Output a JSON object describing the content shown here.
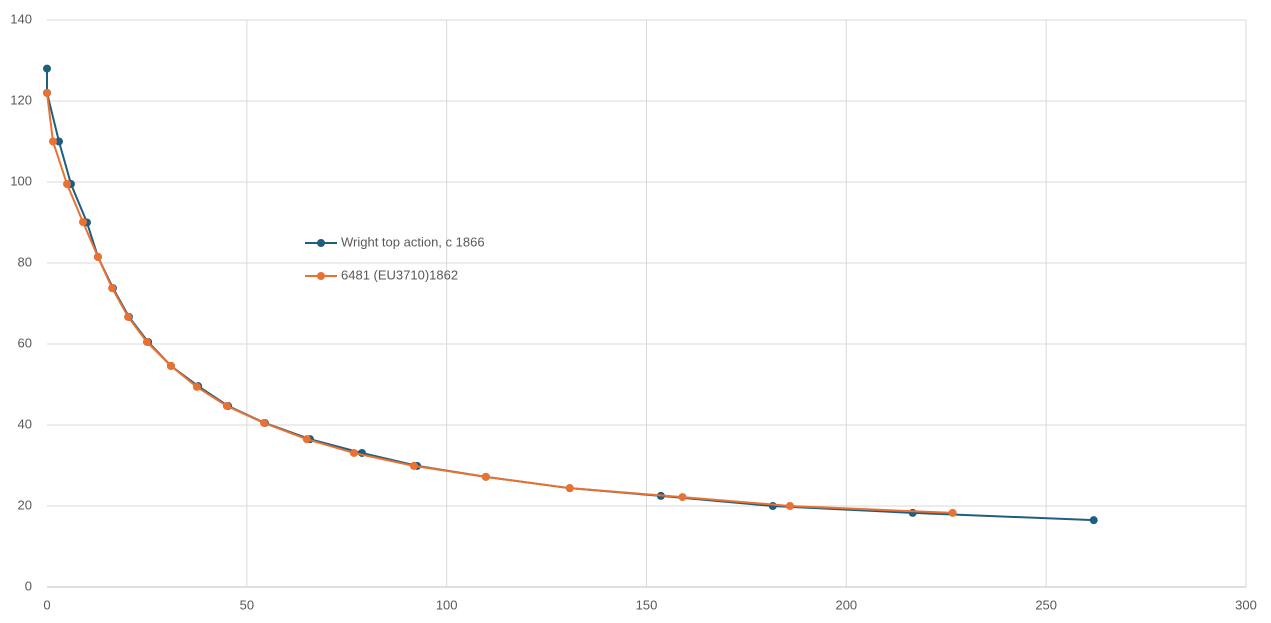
{
  "chart_data": {
    "type": "line",
    "xlim": [
      0,
      300
    ],
    "xticks": [
      0,
      50,
      100,
      150,
      200,
      250,
      300
    ],
    "ylim": [
      0,
      140
    ],
    "yticks": [
      0,
      20,
      40,
      60,
      80,
      100,
      120,
      140
    ],
    "grid": true,
    "legend": "left",
    "series": [
      {
        "name": "Wright top action, c 1866",
        "color": "#1f5e7e",
        "x": [
          0,
          0,
          3,
          6,
          10,
          12.75,
          16.5,
          20.5,
          25.3,
          31,
          37.8,
          45.3,
          54.5,
          65.8,
          78.8,
          92.6,
          109.8,
          130.8,
          153.6,
          181.6,
          216.6,
          261.9
        ],
        "values": [
          128,
          122,
          110,
          99.5,
          90,
          81.5,
          73.8,
          66.7,
          60.5,
          54.6,
          49.6,
          44.7,
          40.5,
          36.5,
          33.1,
          29.9,
          27.2,
          24.4,
          22.5,
          20,
          18.3,
          16.5
        ]
      },
      {
        "name": "6481 (EU3710)1862",
        "color": "#e97132",
        "x": [
          0,
          1.5,
          5,
          9,
          12.75,
          16.3,
          20.3,
          25,
          31,
          37.5,
          45,
          54.3,
          65,
          76.8,
          91.8,
          109.8,
          130.8,
          159,
          185.9,
          226.6
        ],
        "values": [
          122,
          110,
          99.5,
          90.1,
          81.5,
          73.8,
          66.7,
          60.5,
          54.6,
          49.4,
          44.7,
          40.5,
          36.5,
          33.1,
          29.9,
          27.2,
          24.4,
          22.2,
          20,
          18.3
        ]
      }
    ]
  }
}
